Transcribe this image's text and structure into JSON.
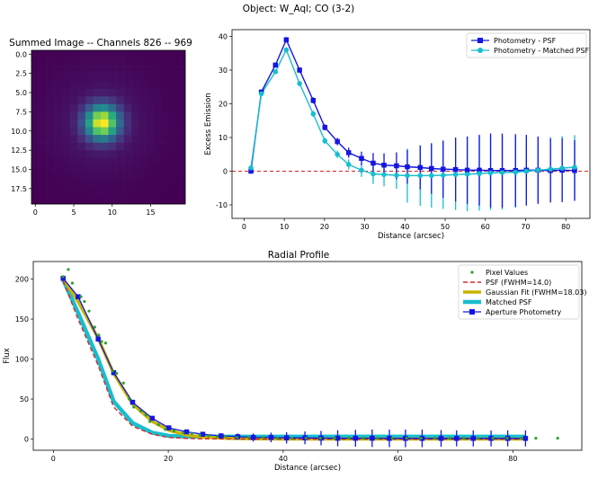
{
  "figure_title": "Object: W_Aql; CO (3-2)",
  "chart_data": [
    {
      "type": "heatmap",
      "title": "Summed Image -- Channels 826 -- 969",
      "xlabel": "",
      "ylabel": "",
      "x_ticks": [
        "0",
        "5",
        "10",
        "15"
      ],
      "y_ticks": [
        "0.0",
        "2.5",
        "5.0",
        "7.5",
        "10.0",
        "12.5",
        "15.0",
        "17.5"
      ],
      "grid_size": 20,
      "center": [
        8.7,
        8.9
      ],
      "peak_sigma": 1.5,
      "colormap": "viridis"
    },
    {
      "type": "line",
      "title": "",
      "xlabel": "Distance (arcsec)",
      "ylabel": "Excess Emission",
      "xlim": [
        -3,
        86
      ],
      "ylim": [
        -14,
        42
      ],
      "x_ticks": [
        "0",
        "10",
        "20",
        "30",
        "40",
        "50",
        "60",
        "70",
        "80"
      ],
      "y_ticks": [
        "-10",
        "0",
        "10",
        "20",
        "30",
        "40"
      ],
      "legend_position": "top-right",
      "zero_line": {
        "y": 0,
        "color": "#d62728",
        "style": "dashed"
      },
      "x": [
        1.7,
        4.3,
        7.8,
        10.5,
        13.8,
        17.2,
        20.1,
        23.2,
        26.0,
        29.2,
        32.1,
        34.8,
        37.9,
        40.6,
        43.8,
        46.6,
        49.5,
        52.6,
        55.5,
        58.5,
        61.3,
        64.2,
        67.5,
        70.2,
        73.1,
        76.2,
        79.1,
        82.2
      ],
      "series": [
        {
          "name": "Photometry - PSF",
          "color": "#1515e0",
          "values": [
            0.0,
            23.5,
            31.5,
            39.0,
            30.0,
            21.0,
            13.0,
            8.8,
            5.5,
            3.8,
            2.4,
            1.8,
            1.6,
            1.3,
            1.1,
            0.8,
            0.6,
            0.5,
            0.3,
            0.3,
            0.2,
            0.2,
            0.2,
            0.3,
            0.3,
            0.2,
            0.3,
            0.2
          ],
          "errors": [
            0.6,
            0.6,
            0.6,
            0.8,
            0.8,
            0.9,
            0.9,
            1.1,
            1.5,
            2.0,
            3.0,
            3.5,
            4.0,
            5.0,
            6.5,
            7.5,
            8.5,
            9.5,
            10.0,
            10.5,
            11.0,
            11.0,
            10.8,
            10.5,
            10.0,
            9.5,
            9.5,
            9.0
          ]
        },
        {
          "name": "Photometry - Matched PSF",
          "color": "#17becf",
          "values": [
            1.0,
            23.0,
            29.5,
            36.0,
            26.0,
            17.0,
            9.0,
            5.0,
            2.0,
            0.3,
            -0.8,
            -1.0,
            -1.2,
            -1.3,
            -1.3,
            -1.3,
            -1.2,
            -1.0,
            -0.9,
            -0.7,
            -0.5,
            -0.4,
            -0.3,
            0.0,
            0.3,
            0.6,
            0.9,
            1.2
          ],
          "errors": [
            0.6,
            0.6,
            0.6,
            0.8,
            0.8,
            0.9,
            0.9,
            1.1,
            1.5,
            2.0,
            3.0,
            3.5,
            4.0,
            8.0,
            9.0,
            9.5,
            10.0,
            10.5,
            11.0,
            11.0,
            11.0,
            11.0,
            10.5,
            10.0,
            9.5,
            9.5,
            9.5,
            9.5
          ]
        }
      ]
    },
    {
      "type": "line",
      "title": "Radial Profile",
      "xlabel": "Distance (arcsec)",
      "ylabel": "Flux",
      "xlim": [
        -3.5,
        92
      ],
      "ylim": [
        -14,
        222
      ],
      "x_ticks": [
        "0",
        "20",
        "40",
        "60",
        "80"
      ],
      "y_ticks": [
        "0",
        "50",
        "100",
        "150",
        "200"
      ],
      "legend_position": "top-right",
      "pixel_values": {
        "name": "Pixel Values",
        "color": "#2ca02c",
        "x": [
          1.7,
          2.6,
          3.3,
          4.8,
          5.4,
          6.2,
          7.2,
          7.9,
          8.4,
          9.1,
          10.3,
          11.0,
          12.2,
          13.2,
          14.0,
          15.2,
          16.1,
          16.8,
          18.3,
          19.5,
          21.0,
          22.6,
          24.1,
          25.5,
          27.0,
          28.5,
          30.0,
          32.0,
          34.0,
          36.5,
          39.0,
          41.5,
          44.0,
          46.5,
          49.0,
          51.5,
          54.0,
          56.5,
          59.0,
          61.5,
          64.0,
          66.5,
          69.0,
          71.5,
          74.0,
          76.5,
          79.0,
          81.5,
          84.0,
          87.8
        ],
        "values": [
          203,
          212,
          195,
          178,
          172,
          160,
          140,
          130,
          122,
          120,
          85,
          82,
          70,
          50,
          40,
          35,
          30,
          22,
          18,
          12,
          10,
          8,
          7,
          5,
          4,
          3,
          3,
          2,
          2,
          2,
          1,
          1,
          1,
          1,
          1,
          1,
          1,
          1,
          1,
          1,
          1,
          1,
          1,
          1,
          1,
          1,
          1,
          1,
          1,
          1
        ]
      },
      "psf": {
        "name": "PSF (FWHM=14.0)",
        "color": "#d62728",
        "style": "dashed",
        "x": [
          1.7,
          4.3,
          7.8,
          10.5,
          13.8,
          17.2,
          20.1,
          23.2,
          26.0,
          30.0,
          35.0,
          40.0,
          50.0,
          60.0,
          70.0,
          82.2
        ],
        "values": [
          198,
          150,
          92,
          40,
          16,
          6,
          2,
          0.8,
          0.3,
          0.1,
          0,
          0,
          0,
          0,
          0,
          0
        ]
      },
      "gaussian_fit": {
        "name": "Gaussian Fit (FWHM=18.03)",
        "color": "#c8b400",
        "x": [
          1.7,
          4.3,
          7.8,
          10.5,
          13.8,
          17.2,
          20.1,
          23.2,
          26.0,
          30.0,
          35.0,
          40.0,
          50.0,
          60.0,
          70.0,
          82.2
        ],
        "values": [
          200,
          172,
          126,
          82,
          44,
          22,
          11,
          5,
          2.5,
          1,
          0.3,
          0,
          0,
          0,
          0,
          0
        ]
      },
      "matched_psf": {
        "name": "Matched PSF",
        "color": "#17becf",
        "x": [
          1.7,
          4.3,
          7.8,
          10.5,
          13.8,
          17.2,
          20.1,
          23.2,
          26.0,
          30.0,
          35.0,
          40.0,
          50.0,
          60.0,
          70.0,
          82.2
        ],
        "values": [
          199,
          158,
          100,
          47,
          20,
          8,
          4,
          3,
          3,
          3,
          3,
          3,
          3,
          3,
          3,
          3
        ]
      },
      "aperture_photometry": {
        "name": "Aperture Photometry",
        "color": "#1515e0",
        "x": [
          1.7,
          4.3,
          7.8,
          10.5,
          13.8,
          17.2,
          20.1,
          23.2,
          26.0,
          29.2,
          32.1,
          34.8,
          37.9,
          40.6,
          43.8,
          46.6,
          49.5,
          52.6,
          55.5,
          58.5,
          61.3,
          64.2,
          67.5,
          70.2,
          73.1,
          76.2,
          79.1,
          82.2
        ],
        "values": [
          201,
          178,
          125,
          83,
          46,
          26,
          14,
          9,
          6,
          4,
          3,
          2,
          2,
          1.5,
          1.5,
          1.2,
          1,
          1,
          1,
          0.8,
          0.8,
          0.8,
          0.8,
          0.8,
          0.8,
          0.8,
          0.8,
          0.8
        ],
        "errors": [
          1.5,
          1.5,
          1.5,
          1.5,
          1.5,
          2,
          2,
          2,
          2.5,
          3,
          4,
          5,
          6,
          7,
          8,
          9,
          10,
          10.5,
          11,
          11,
          11,
          11,
          10.5,
          10,
          10,
          10,
          10,
          10
        ]
      }
    }
  ]
}
